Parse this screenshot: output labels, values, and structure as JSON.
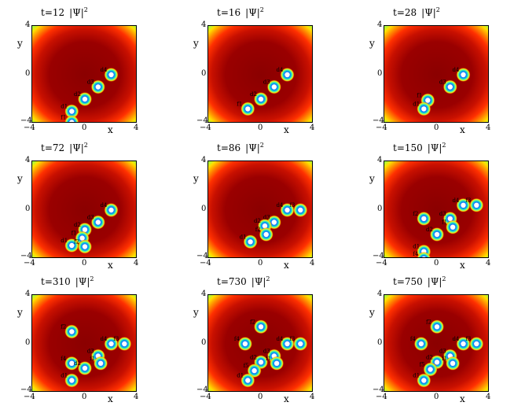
{
  "figure": {
    "tick_labels": {
      "min": "−4",
      "max": "4",
      "zero": "0"
    },
    "axis_labels": {
      "x": "x",
      "y": "y"
    },
    "colors": {
      "background": "#ffffff",
      "field_low": "#8b0000",
      "field_high": "#00d0c0",
      "vortex_core": "#1030d0"
    },
    "panels": [
      {
        "title": "t=12",
        "psi": "|Ψ|",
        "sup": "2",
        "vortices": [
          {
            "x": 2,
            "y": 0,
            "label": "d4"
          },
          {
            "x": 1,
            "y": -1,
            "label": "d3"
          },
          {
            "x": 0,
            "y": -2,
            "label": "d2"
          },
          {
            "x": -1,
            "y": -3,
            "label": "d1"
          },
          {
            "x": -1,
            "y": -3.9,
            "label": "f1"
          }
        ]
      },
      {
        "title": "t=16",
        "psi": "|Ψ|",
        "sup": "2",
        "vortices": [
          {
            "x": 2,
            "y": 0,
            "label": "d4"
          },
          {
            "x": 1,
            "y": -1,
            "label": "d3"
          },
          {
            "x": 0,
            "y": -2,
            "label": "d2"
          },
          {
            "x": -1,
            "y": -2.8,
            "label": "f1"
          }
        ]
      },
      {
        "title": "t=28",
        "psi": "|Ψ|",
        "sup": "2",
        "vortices": [
          {
            "x": 2,
            "y": 0,
            "label": "d4"
          },
          {
            "x": 1,
            "y": -1,
            "label": "d3"
          },
          {
            "x": -0.7,
            "y": -2.1,
            "label": "f1"
          },
          {
            "x": -1,
            "y": -2.8,
            "label": "d1"
          }
        ]
      },
      {
        "title": "t=72",
        "psi": "|Ψ|",
        "sup": "2",
        "vortices": [
          {
            "x": 2,
            "y": 0,
            "label": "d4"
          },
          {
            "x": 1,
            "y": -1,
            "label": "d3"
          },
          {
            "x": 0,
            "y": -1.6,
            "label": "d2"
          },
          {
            "x": -1,
            "y": -2.9,
            "label": "d1"
          },
          {
            "x": -0.2,
            "y": -2.3,
            "label": "f1"
          },
          {
            "x": 0,
            "y": -3,
            "label": "f2"
          }
        ]
      },
      {
        "title": "t=86",
        "psi": "|Ψ|",
        "sup": "2",
        "vortices": [
          {
            "x": 2,
            "y": 0,
            "label": "d4"
          },
          {
            "x": 3,
            "y": 0,
            "label": "f3"
          },
          {
            "x": 1,
            "y": -1,
            "label": "d3"
          },
          {
            "x": 0.3,
            "y": -1.3,
            "label": "d2"
          },
          {
            "x": -0.8,
            "y": -2.6,
            "label": "d1"
          },
          {
            "x": 0.4,
            "y": -2,
            "label": "f2"
          }
        ]
      },
      {
        "title": "t=150",
        "psi": "|Ψ|",
        "sup": "2",
        "vortices": [
          {
            "x": 2,
            "y": 0.4,
            "label": "d4"
          },
          {
            "x": 3,
            "y": 0.4,
            "label": "f3"
          },
          {
            "x": 1,
            "y": -0.7,
            "label": "d3"
          },
          {
            "x": -1,
            "y": -0.7,
            "label": "f2"
          },
          {
            "x": 0,
            "y": -2,
            "label": "d2"
          },
          {
            "x": -1,
            "y": -3.4,
            "label": "d1"
          },
          {
            "x": -1,
            "y": -4,
            "label": "f4"
          },
          {
            "x": 1.2,
            "y": -1.4,
            "label": "f1"
          }
        ]
      },
      {
        "title": "t=310",
        "psi": "|Ψ|",
        "sup": "2",
        "vortices": [
          {
            "x": 2,
            "y": 0,
            "label": "d4"
          },
          {
            "x": 3,
            "y": 0,
            "label": "f3"
          },
          {
            "x": 1,
            "y": -1,
            "label": "d3"
          },
          {
            "x": -1,
            "y": 1,
            "label": "f2"
          },
          {
            "x": -1,
            "y": -1.6,
            "label": "f4"
          },
          {
            "x": 0,
            "y": -2,
            "label": "d2"
          },
          {
            "x": -1,
            "y": -3,
            "label": "d1"
          },
          {
            "x": 1.2,
            "y": -1.6,
            "label": "f1"
          }
        ]
      },
      {
        "title": "t=730",
        "psi": "|Ψ|",
        "sup": "2",
        "vortices": [
          {
            "x": 0,
            "y": 1.4,
            "label": "f2"
          },
          {
            "x": -1.2,
            "y": 0,
            "label": "f4"
          },
          {
            "x": 2,
            "y": 0,
            "label": "d4"
          },
          {
            "x": 3,
            "y": 0,
            "label": "f3"
          },
          {
            "x": 1,
            "y": -1,
            "label": "d3"
          },
          {
            "x": 0,
            "y": -1.5,
            "label": "d2"
          },
          {
            "x": -0.5,
            "y": -2.2,
            "label": "f5"
          },
          {
            "x": -1,
            "y": -3,
            "label": "d1"
          },
          {
            "x": 1.2,
            "y": -1.6,
            "label": "f1"
          }
        ]
      },
      {
        "title": "t=750",
        "psi": "|Ψ|",
        "sup": "2",
        "vortices": [
          {
            "x": 0,
            "y": 1.4,
            "label": "f2"
          },
          {
            "x": -1.2,
            "y": 0,
            "label": "f4"
          },
          {
            "x": 2,
            "y": 0,
            "label": "d4"
          },
          {
            "x": 3,
            "y": 0,
            "label": "f3"
          },
          {
            "x": 1,
            "y": -1,
            "label": "d3"
          },
          {
            "x": 0,
            "y": -1.5,
            "label": "d2"
          },
          {
            "x": -0.5,
            "y": -2.1,
            "label": "f5"
          },
          {
            "x": -1,
            "y": -3,
            "label": "d1"
          },
          {
            "x": 1.2,
            "y": -1.6,
            "label": "f1"
          }
        ]
      }
    ]
  }
}
